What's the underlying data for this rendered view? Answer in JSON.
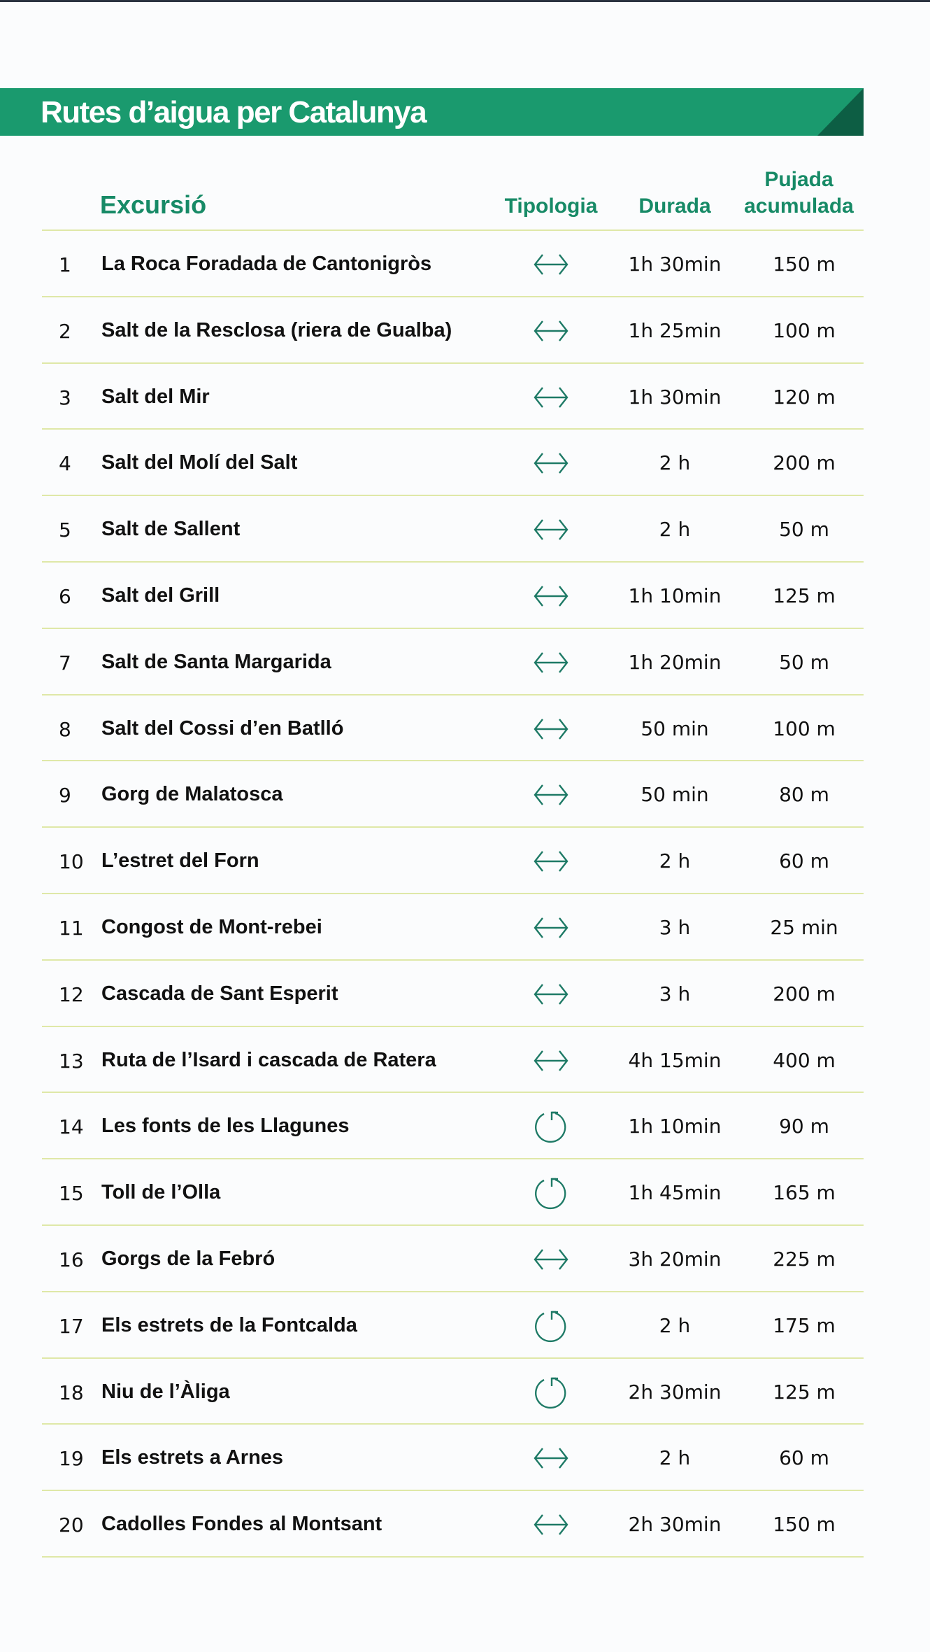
{
  "title": "Rutes d’aigua per Catalunya",
  "colors": {
    "accent": "#1a9a6e",
    "accent_dark": "#0d5e44",
    "header_text": "#178a66",
    "rule": "#dfe8a8"
  },
  "headers": {
    "name": "Excursió",
    "type": "Tipologia",
    "duration": "Durada",
    "climb_line1": "Pujada",
    "climb_line2": "acumulada"
  },
  "routes": [
    {
      "n": "1",
      "name": "La Roca Foradada de Cantonigròs",
      "type": "two-way-arrow-icon",
      "duration": "1h 30min",
      "climb": "150 m"
    },
    {
      "n": "2",
      "name": "Salt de la Resclosa (riera de Gualba)",
      "type": "two-way-arrow-icon",
      "duration": "1h 25min",
      "climb": "100 m"
    },
    {
      "n": "3",
      "name": "Salt del Mir",
      "type": "two-way-arrow-icon",
      "duration": "1h 30min",
      "climb": "120 m"
    },
    {
      "n": "4",
      "name": "Salt del Molí del Salt",
      "type": "two-way-arrow-icon",
      "duration": "2 h",
      "climb": "200 m"
    },
    {
      "n": "5",
      "name": "Salt de Sallent",
      "type": "two-way-arrow-icon",
      "duration": "2 h",
      "climb": "50 m"
    },
    {
      "n": "6",
      "name": "Salt del Grill",
      "type": "two-way-arrow-icon",
      "duration": "1h 10min",
      "climb": "125 m"
    },
    {
      "n": "7",
      "name": "Salt de Santa Margarida",
      "type": "two-way-arrow-icon",
      "duration": "1h 20min",
      "climb": "50 m"
    },
    {
      "n": "8",
      "name": "Salt del Cossi d’en Batlló",
      "type": "two-way-arrow-icon",
      "duration": "50 min",
      "climb": "100 m"
    },
    {
      "n": "9",
      "name": "Gorg de Malatosca",
      "type": "two-way-arrow-icon",
      "duration": "50 min",
      "climb": "80 m"
    },
    {
      "n": "10",
      "name": "L’estret del Forn",
      "type": "two-way-arrow-icon",
      "duration": "2 h",
      "climb": "60 m"
    },
    {
      "n": "11",
      "name": "Congost de Mont-rebei",
      "type": "two-way-arrow-icon",
      "duration": "3 h",
      "climb": "25 min"
    },
    {
      "n": "12",
      "name": "Cascada de Sant Esperit",
      "type": "two-way-arrow-icon",
      "duration": "3 h",
      "climb": "200 m"
    },
    {
      "n": "13",
      "name": "Ruta de l’Isard i cascada de Ratera",
      "type": "two-way-arrow-icon",
      "duration": "4h 15min",
      "climb": "400 m"
    },
    {
      "n": "14",
      "name": "Les fonts de les Llagunes",
      "type": "loop-icon",
      "duration": "1h 10min",
      "climb": "90 m"
    },
    {
      "n": "15",
      "name": "Toll de l’Olla",
      "type": "loop-icon",
      "duration": "1h 45min",
      "climb": "165 m"
    },
    {
      "n": "16",
      "name": "Gorgs de la Febró",
      "type": "two-way-arrow-icon",
      "duration": "3h 20min",
      "climb": "225 m"
    },
    {
      "n": "17",
      "name": "Els estrets de la Fontcalda",
      "type": "loop-icon",
      "duration": "2 h",
      "climb": "175 m"
    },
    {
      "n": "18",
      "name": "Niu de l’Àliga",
      "type": "loop-icon",
      "duration": "2h 30min",
      "climb": "125 m"
    },
    {
      "n": "19",
      "name": "Els estrets a Arnes",
      "type": "two-way-arrow-icon",
      "duration": "2 h",
      "climb": "60 m"
    },
    {
      "n": "20",
      "name": "Cadolles Fondes al Montsant",
      "type": "two-way-arrow-icon",
      "duration": "2h 30min",
      "climb": "150 m"
    }
  ]
}
